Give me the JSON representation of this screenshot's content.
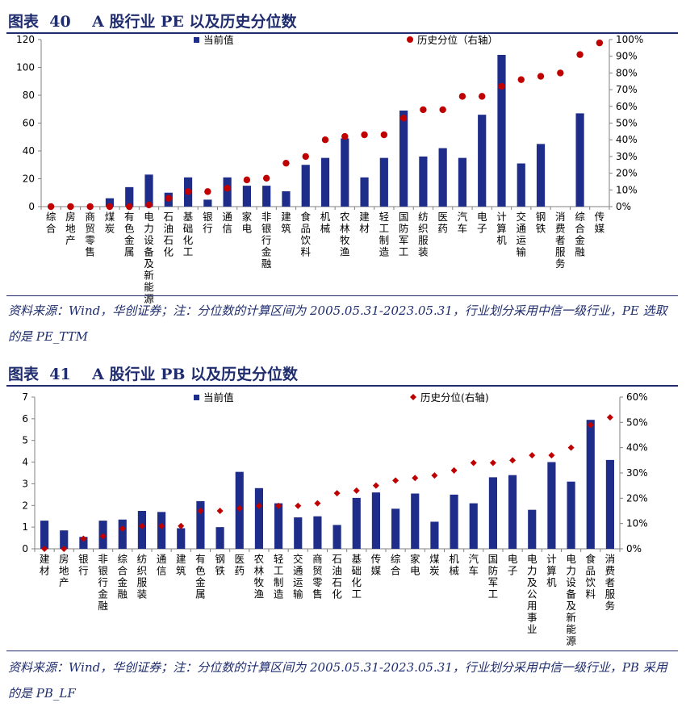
{
  "figures": [
    {
      "title": "图表  40    A 股行业 PE 以及历史分位数",
      "note": "资料来源：Wind，华创证券；注：分位数的计算区间为 2005.05.31-2023.05.31，行业划分采用中信一级行业，PE 选取的是 PE_TTM"
    },
    {
      "title": "图表  41    A 股行业 PB 以及历史分位数",
      "note": "资料来源：Wind，华创证券；注：分位数的计算区间为 2005.05.31-2023.05.31，行业划分采用中信一级行业，PB 采用的是 PB_LF"
    }
  ],
  "colors": {
    "bar": "#1f2d8a",
    "marker": "#c00000",
    "title": "#1f2d6e",
    "axis": "#808080"
  },
  "chart_data": [
    {
      "type": "bar",
      "categories": [
        "综合",
        "房地产",
        "商贸零售",
        "煤炭",
        "有色金属",
        "电力设备及新能源",
        "石油石化",
        "基础化工",
        "银行",
        "通信",
        "家电",
        "非银行金融",
        "建筑",
        "食品饮料",
        "机械",
        "农林牧渔",
        "建材",
        "轻工制造",
        "国防军工",
        "纺织服装",
        "医药",
        "汽车",
        "电子",
        "计算机",
        "交通运输",
        "钢铁",
        "消费者服务",
        "综合金融",
        "传媒"
      ],
      "series": [
        {
          "name": "当前值",
          "axis": "left",
          "kind": "bar",
          "values": [
            0,
            0,
            0,
            6,
            14,
            23,
            10,
            21,
            5,
            21,
            15,
            15,
            11,
            30,
            35,
            49,
            21,
            35,
            69,
            36,
            42,
            35,
            66,
            109,
            31,
            45,
            0,
            67,
            0
          ]
        },
        {
          "name": "历史分位（右轴）",
          "axis": "right",
          "kind": "marker",
          "values": [
            0,
            0,
            0,
            0,
            0,
            1,
            5,
            9,
            9,
            11,
            16,
            17,
            26,
            30,
            40,
            42,
            43,
            43,
            53,
            58,
            58,
            66,
            66,
            72,
            76,
            78,
            80,
            91,
            98
          ]
        }
      ],
      "ylim": [
        0,
        120
      ],
      "yticks": [
        0,
        20,
        40,
        60,
        80,
        100,
        120
      ],
      "y2lim": [
        0,
        100
      ],
      "y2ticks": [
        "0%",
        "10%",
        "20%",
        "30%",
        "40%",
        "50%",
        "60%",
        "70%",
        "80%",
        "90%",
        "100%"
      ],
      "legend": "top"
    },
    {
      "type": "bar",
      "categories": [
        "建材",
        "房地产",
        "银行",
        "非银行金融",
        "综合金融",
        "纺织服装",
        "通信",
        "建筑",
        "有色金属",
        "钢铁",
        "医药",
        "农林牧渔",
        "轻工制造",
        "交通运输",
        "商贸零售",
        "石油石化",
        "基础化工",
        "传媒",
        "综合",
        "家电",
        "煤炭",
        "机械",
        "汽车",
        "国防军工",
        "电子",
        "电力及公用事业",
        "计算机",
        "电力设备及新能源",
        "食品饮料",
        "消费者服务"
      ],
      "series": [
        {
          "name": "当前值",
          "axis": "left",
          "kind": "bar",
          "values": [
            1.3,
            0.85,
            0.55,
            1.3,
            1.35,
            1.75,
            1.7,
            0.95,
            2.2,
            1.0,
            3.55,
            2.8,
            2.1,
            1.45,
            1.5,
            1.1,
            2.35,
            2.6,
            1.85,
            2.55,
            1.25,
            2.5,
            2.1,
            3.3,
            3.4,
            1.8,
            4.0,
            3.1,
            5.95,
            4.1
          ]
        },
        {
          "name": "历史分位(右轴)",
          "axis": "right",
          "kind": "marker",
          "values": [
            0,
            0,
            4,
            5,
            8,
            9,
            9,
            9,
            15,
            15,
            16,
            17,
            17,
            17,
            18,
            22,
            23,
            25,
            27,
            28,
            29,
            31,
            34,
            34,
            35,
            37,
            37,
            40,
            49,
            52
          ]
        }
      ],
      "ylim": [
        0,
        7
      ],
      "yticks": [
        0,
        1,
        2,
        3,
        4,
        5,
        6,
        7
      ],
      "y2lim": [
        0,
        60
      ],
      "y2ticks": [
        "0%",
        "10%",
        "20%",
        "30%",
        "40%",
        "50%",
        "60%"
      ],
      "legend": "top"
    }
  ]
}
